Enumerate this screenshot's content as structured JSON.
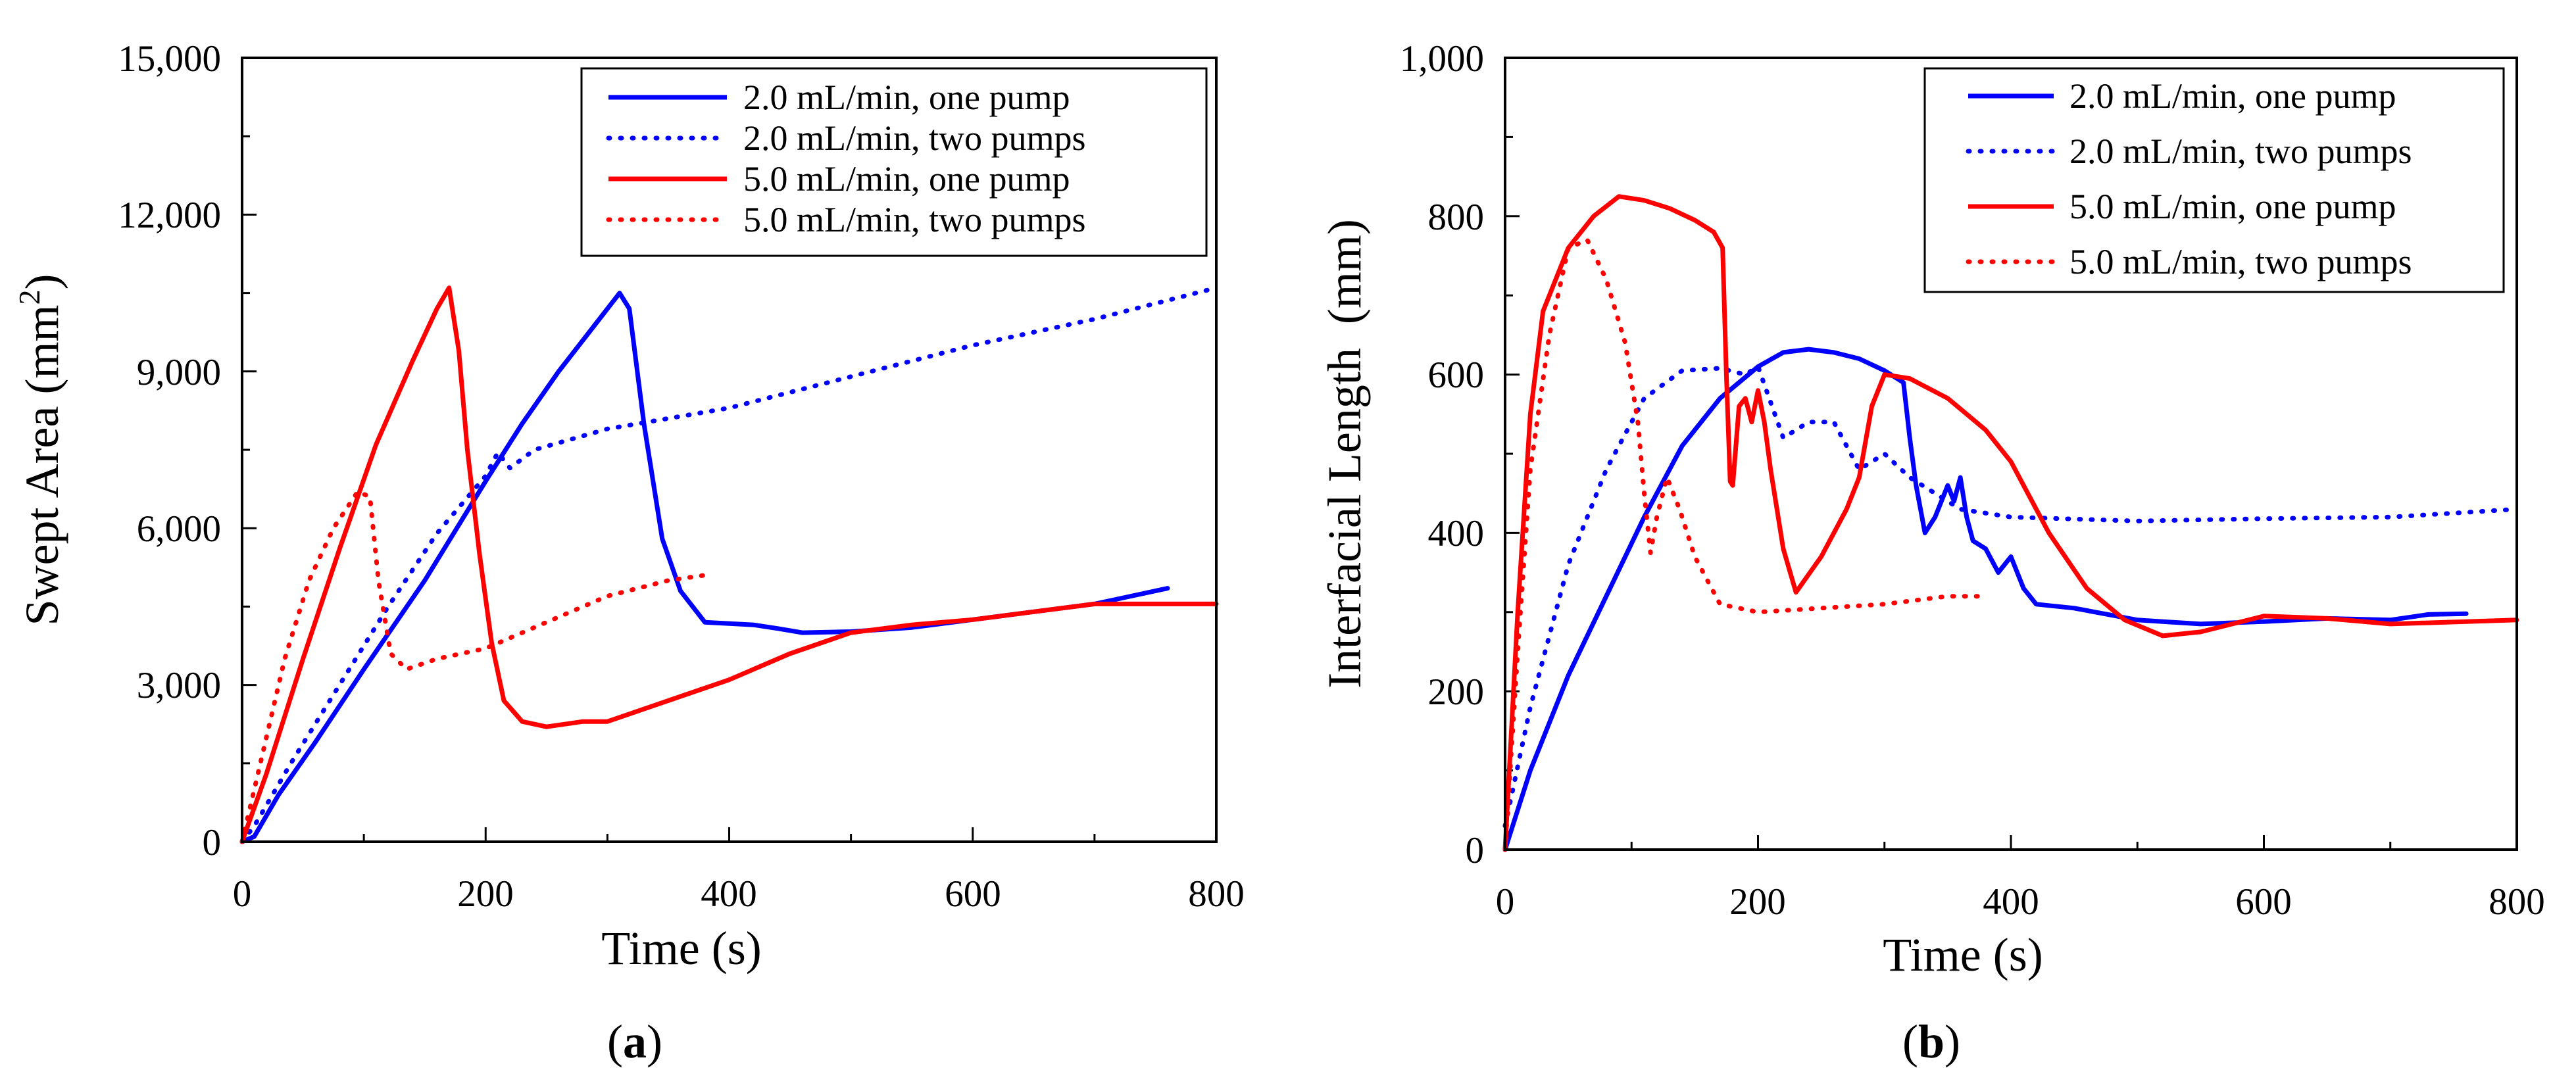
{
  "chart_data": [
    {
      "type": "line",
      "panel": "(a)",
      "panel_letter": "a",
      "xlabel": "Time (s)",
      "ylabel": "Swept Area (mm²)",
      "ylabel_main": "Swept Area (mm",
      "ylabel_sup": "2",
      "ylabel_end": ")",
      "xlim": [
        0,
        800
      ],
      "ylim": [
        0,
        15000
      ],
      "xticks": [
        0,
        200,
        400,
        600,
        800
      ],
      "xtick_labels": [
        "0",
        "200",
        "400",
        "600",
        "800"
      ],
      "yticks": [
        0,
        3000,
        6000,
        9000,
        12000,
        15000
      ],
      "ytick_labels": [
        "0",
        "3,000",
        "6,000",
        "9,000",
        "12,000",
        "15,000"
      ],
      "legend_position": "top-right",
      "series": [
        {
          "name": "2.0 mL/min, one pump",
          "color": "#0000ff",
          "style": "solid",
          "points": [
            [
              0,
              0
            ],
            [
              10,
              100
            ],
            [
              30,
              900
            ],
            [
              60,
              1900
            ],
            [
              100,
              3300
            ],
            [
              150,
              5000
            ],
            [
              200,
              6900
            ],
            [
              230,
              8000
            ],
            [
              260,
              9000
            ],
            [
              290,
              9900
            ],
            [
              310,
              10500
            ],
            [
              318,
              10200
            ],
            [
              330,
              8000
            ],
            [
              345,
              5800
            ],
            [
              360,
              4800
            ],
            [
              380,
              4200
            ],
            [
              420,
              4150
            ],
            [
              440,
              4080
            ],
            [
              460,
              4000
            ],
            [
              500,
              4020
            ],
            [
              550,
              4100
            ],
            [
              600,
              4250
            ],
            [
              650,
              4400
            ],
            [
              700,
              4550
            ],
            [
              720,
              4650
            ],
            [
              760,
              4850
            ]
          ]
        },
        {
          "name": "2.0 mL/min, two pumps",
          "color": "#0000ff",
          "style": "dotted",
          "points": [
            [
              0,
              0
            ],
            [
              10,
              300
            ],
            [
              40,
              1500
            ],
            [
              80,
              3000
            ],
            [
              120,
              4500
            ],
            [
              160,
              5900
            ],
            [
              200,
              7000
            ],
            [
              210,
              7450
            ],
            [
              220,
              7150
            ],
            [
              240,
              7500
            ],
            [
              300,
              7900
            ],
            [
              400,
              8300
            ],
            [
              500,
              8900
            ],
            [
              600,
              9500
            ],
            [
              700,
              10000
            ],
            [
              800,
              10600
            ]
          ]
        },
        {
          "name": "5.0 mL/min, one pump",
          "color": "#ff0000",
          "style": "solid",
          "points": [
            [
              0,
              0
            ],
            [
              20,
              1300
            ],
            [
              50,
              3500
            ],
            [
              80,
              5600
            ],
            [
              110,
              7600
            ],
            [
              140,
              9200
            ],
            [
              160,
              10200
            ],
            [
              170,
              10600
            ],
            [
              178,
              9400
            ],
            [
              185,
              7500
            ],
            [
              195,
              5500
            ],
            [
              205,
              3800
            ],
            [
              215,
              2700
            ],
            [
              230,
              2300
            ],
            [
              250,
              2200
            ],
            [
              280,
              2300
            ],
            [
              300,
              2300
            ],
            [
              350,
              2700
            ],
            [
              400,
              3100
            ],
            [
              450,
              3600
            ],
            [
              500,
              4000
            ],
            [
              550,
              4150
            ],
            [
              600,
              4250
            ],
            [
              650,
              4400
            ],
            [
              700,
              4550
            ],
            [
              750,
              4550
            ],
            [
              800,
              4550
            ]
          ]
        },
        {
          "name": "5.0 mL/min, two pumps",
          "color": "#ff0000",
          "style": "dotted",
          "points": [
            [
              0,
              0
            ],
            [
              15,
              1500
            ],
            [
              35,
              3500
            ],
            [
              55,
              5000
            ],
            [
              75,
              6000
            ],
            [
              95,
              6700
            ],
            [
              105,
              6600
            ],
            [
              112,
              5000
            ],
            [
              122,
              3600
            ],
            [
              135,
              3300
            ],
            [
              160,
              3500
            ],
            [
              200,
              3700
            ],
            [
              250,
              4200
            ],
            [
              300,
              4700
            ],
            [
              350,
              5000
            ],
            [
              380,
              5100
            ]
          ]
        }
      ]
    },
    {
      "type": "line",
      "panel": "(b)",
      "panel_letter": "b",
      "xlabel": "Time (s)",
      "ylabel": "Interfacial Length  (mm)",
      "xlim": [
        0,
        800
      ],
      "ylim": [
        0,
        1000
      ],
      "xticks": [
        0,
        200,
        400,
        600,
        800
      ],
      "xtick_labels": [
        "0",
        "200",
        "400",
        "600",
        "800"
      ],
      "yticks": [
        0,
        200,
        400,
        600,
        800,
        1000
      ],
      "ytick_labels": [
        "0",
        "200",
        "400",
        "600",
        "800",
        "1,000"
      ],
      "legend_position": "top-right",
      "series": [
        {
          "name": "2.0 mL/min, one pump",
          "color": "#0000ff",
          "style": "solid",
          "points": [
            [
              0,
              0
            ],
            [
              20,
              100
            ],
            [
              50,
              220
            ],
            [
              80,
              320
            ],
            [
              110,
              420
            ],
            [
              140,
              510
            ],
            [
              170,
              570
            ],
            [
              200,
              610
            ],
            [
              220,
              628
            ],
            [
              240,
              632
            ],
            [
              260,
              628
            ],
            [
              280,
              620
            ],
            [
              300,
              605
            ],
            [
              315,
              590
            ],
            [
              320,
              520
            ],
            [
              325,
              460
            ],
            [
              332,
              400
            ],
            [
              340,
              420
            ],
            [
              350,
              460
            ],
            [
              355,
              440
            ],
            [
              360,
              470
            ],
            [
              365,
              420
            ],
            [
              370,
              390
            ],
            [
              380,
              380
            ],
            [
              390,
              350
            ],
            [
              400,
              370
            ],
            [
              410,
              330
            ],
            [
              420,
              310
            ],
            [
              450,
              305
            ],
            [
              500,
              290
            ],
            [
              550,
              285
            ],
            [
              600,
              288
            ],
            [
              650,
              292
            ],
            [
              700,
              290
            ],
            [
              730,
              297
            ],
            [
              760,
              298
            ]
          ]
        },
        {
          "name": "2.0 mL/min, two pumps",
          "color": "#0000ff",
          "style": "dotted",
          "points": [
            [
              0,
              30
            ],
            [
              20,
              180
            ],
            [
              50,
              360
            ],
            [
              80,
              480
            ],
            [
              110,
              570
            ],
            [
              140,
              605
            ],
            [
              170,
              608
            ],
            [
              190,
              600
            ],
            [
              200,
              610
            ],
            [
              220,
              520
            ],
            [
              240,
              540
            ],
            [
              260,
              540
            ],
            [
              280,
              480
            ],
            [
              300,
              500
            ],
            [
              320,
              470
            ],
            [
              360,
              430
            ],
            [
              400,
              420
            ],
            [
              500,
              415
            ],
            [
              600,
              418
            ],
            [
              700,
              420
            ],
            [
              800,
              430
            ]
          ]
        },
        {
          "name": "5.0 mL/min, one pump",
          "color": "#ff0000",
          "style": "solid",
          "points": [
            [
              0,
              0
            ],
            [
              10,
              300
            ],
            [
              20,
              550
            ],
            [
              30,
              680
            ],
            [
              50,
              760
            ],
            [
              70,
              800
            ],
            [
              90,
              825
            ],
            [
              110,
              820
            ],
            [
              130,
              810
            ],
            [
              150,
              795
            ],
            [
              165,
              780
            ],
            [
              172,
              760
            ],
            [
              175,
              600
            ],
            [
              178,
              465
            ],
            [
              180,
              460
            ],
            [
              185,
              560
            ],
            [
              190,
              570
            ],
            [
              195,
              540
            ],
            [
              200,
              580
            ],
            [
              205,
              540
            ],
            [
              210,
              480
            ],
            [
              220,
              380
            ],
            [
              230,
              325
            ],
            [
              250,
              370
            ],
            [
              270,
              430
            ],
            [
              280,
              470
            ],
            [
              290,
              560
            ],
            [
              300,
              600
            ],
            [
              320,
              595
            ],
            [
              350,
              570
            ],
            [
              380,
              530
            ],
            [
              400,
              490
            ],
            [
              430,
              400
            ],
            [
              460,
              330
            ],
            [
              490,
              290
            ],
            [
              520,
              270
            ],
            [
              550,
              275
            ],
            [
              600,
              295
            ],
            [
              650,
              292
            ],
            [
              700,
              285
            ],
            [
              800,
              290
            ]
          ]
        },
        {
          "name": "5.0 mL/min, two pumps",
          "color": "#ff0000",
          "style": "dotted",
          "points": [
            [
              0,
              0
            ],
            [
              10,
              250
            ],
            [
              20,
              480
            ],
            [
              35,
              650
            ],
            [
              50,
              760
            ],
            [
              65,
              770
            ],
            [
              80,
              720
            ],
            [
              95,
              640
            ],
            [
              105,
              540
            ],
            [
              110,
              450
            ],
            [
              115,
              375
            ],
            [
              120,
              420
            ],
            [
              128,
              470
            ],
            [
              138,
              430
            ],
            [
              150,
              370
            ],
            [
              170,
              310
            ],
            [
              200,
              300
            ],
            [
              250,
              305
            ],
            [
              300,
              310
            ],
            [
              350,
              320
            ],
            [
              380,
              320
            ]
          ]
        }
      ]
    }
  ]
}
